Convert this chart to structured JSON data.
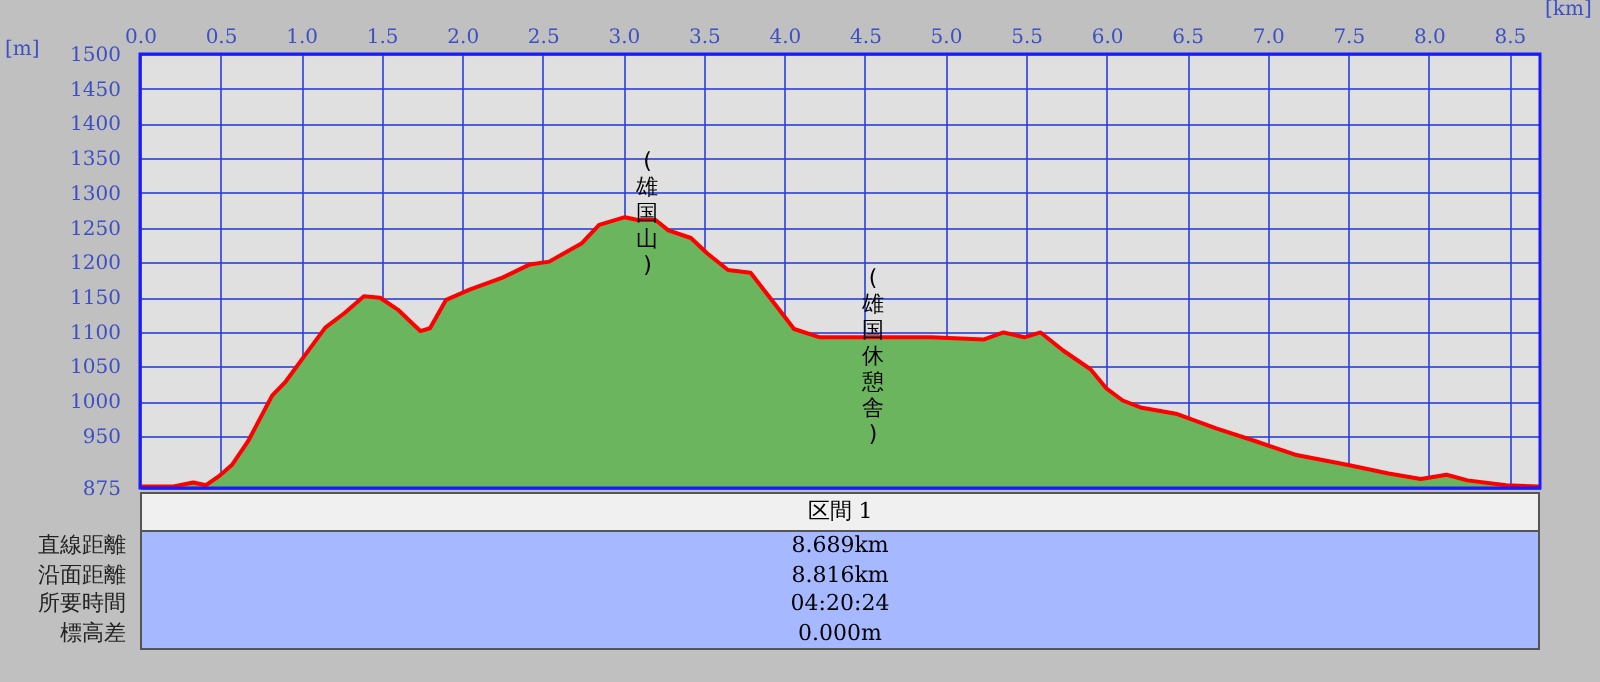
{
  "chart_data": {
    "type": "area",
    "xlabel": "[km]",
    "ylabel": "[m]",
    "x": [
      0,
      0.2,
      0.33,
      0.41,
      0.49,
      0.57,
      0.67,
      0.82,
      0.9,
      1.02,
      1.15,
      1.27,
      1.39,
      1.49,
      1.6,
      1.74,
      1.8,
      1.9,
      2.05,
      2.25,
      2.42,
      2.54,
      2.74,
      2.85,
      3.01,
      3.09,
      3.2,
      3.28,
      3.42,
      3.52,
      3.65,
      3.79,
      3.92,
      4.06,
      4.22,
      4.5,
      4.91,
      5.24,
      5.36,
      5.49,
      5.59,
      5.73,
      5.9,
      6.0,
      6.1,
      6.21,
      6.43,
      6.68,
      6.93,
      7.17,
      7.5,
      7.75,
      7.95,
      8.11,
      8.24,
      8.48,
      8.68
    ],
    "series": [
      {
        "type": "area",
        "color": "#6cb55f",
        "values": [
          877,
          877,
          883,
          879,
          892,
          908,
          942,
          1008,
          1027,
          1065,
          1106,
          1127,
          1151,
          1149,
          1132,
          1101,
          1105,
          1146,
          1161,
          1178,
          1197,
          1201,
          1227,
          1254,
          1265,
          1261,
          1261,
          1246,
          1235,
          1213,
          1189,
          1185,
          1146,
          1104,
          1092,
          1092,
          1092,
          1089,
          1099,
          1092,
          1099,
          1073,
          1046,
          1018,
          1001,
          991,
          982,
          961,
          942,
          923,
          908,
          896,
          888,
          894,
          886,
          879,
          877
        ]
      },
      {
        "type": "line",
        "color": "#ff0000",
        "values": [
          877,
          877,
          883,
          879,
          892,
          908,
          942,
          1008,
          1027,
          1065,
          1106,
          1127,
          1151,
          1149,
          1132,
          1101,
          1105,
          1146,
          1161,
          1178,
          1197,
          1201,
          1227,
          1254,
          1265,
          1261,
          1261,
          1246,
          1235,
          1213,
          1189,
          1185,
          1146,
          1104,
          1092,
          1092,
          1092,
          1089,
          1099,
          1092,
          1099,
          1073,
          1046,
          1018,
          1001,
          991,
          982,
          961,
          942,
          923,
          908,
          896,
          888,
          894,
          886,
          879,
          877
        ]
      }
    ],
    "xlim": [
      0,
      8.69
    ],
    "xticks": [
      {
        "value": 0,
        "label": "0.0"
      },
      {
        "value": 0.5,
        "label": "0.5"
      },
      {
        "value": 1,
        "label": "1.0"
      },
      {
        "value": 1.5,
        "label": "1.5"
      },
      {
        "value": 2,
        "label": "2.0"
      },
      {
        "value": 2.5,
        "label": "2.5"
      },
      {
        "value": 3,
        "label": "3.0"
      },
      {
        "value": 3.5,
        "label": "3.5"
      },
      {
        "value": 4,
        "label": "4.0"
      },
      {
        "value": 4.5,
        "label": "4.5"
      },
      {
        "value": 5,
        "label": "5.0"
      },
      {
        "value": 5.5,
        "label": "5.5"
      },
      {
        "value": 6,
        "label": "6.0"
      },
      {
        "value": 6.5,
        "label": "6.5"
      },
      {
        "value": 7,
        "label": "7.0"
      },
      {
        "value": 7.5,
        "label": "7.5"
      },
      {
        "value": 8,
        "label": "8.0"
      },
      {
        "value": 8.5,
        "label": "8.5"
      }
    ],
    "ylim": [
      875,
      1500
    ],
    "yticks": [
      875,
      950,
      1000,
      1050,
      1100,
      1150,
      1200,
      1250,
      1300,
      1350,
      1400,
      1450,
      1500
    ],
    "grid": true,
    "annotations": [
      {
        "text": "(雄国山)",
        "x": 3.15,
        "y": 1261
      },
      {
        "text": "(雄国休憩舎)",
        "x": 4.55,
        "y": 1092
      },
      "区間 1",
      "直線距離",
      "8.689km",
      "沿面距離",
      "8.816km",
      "所要時間",
      "04:20:24",
      "標高差",
      "0.000m"
    ]
  }
}
